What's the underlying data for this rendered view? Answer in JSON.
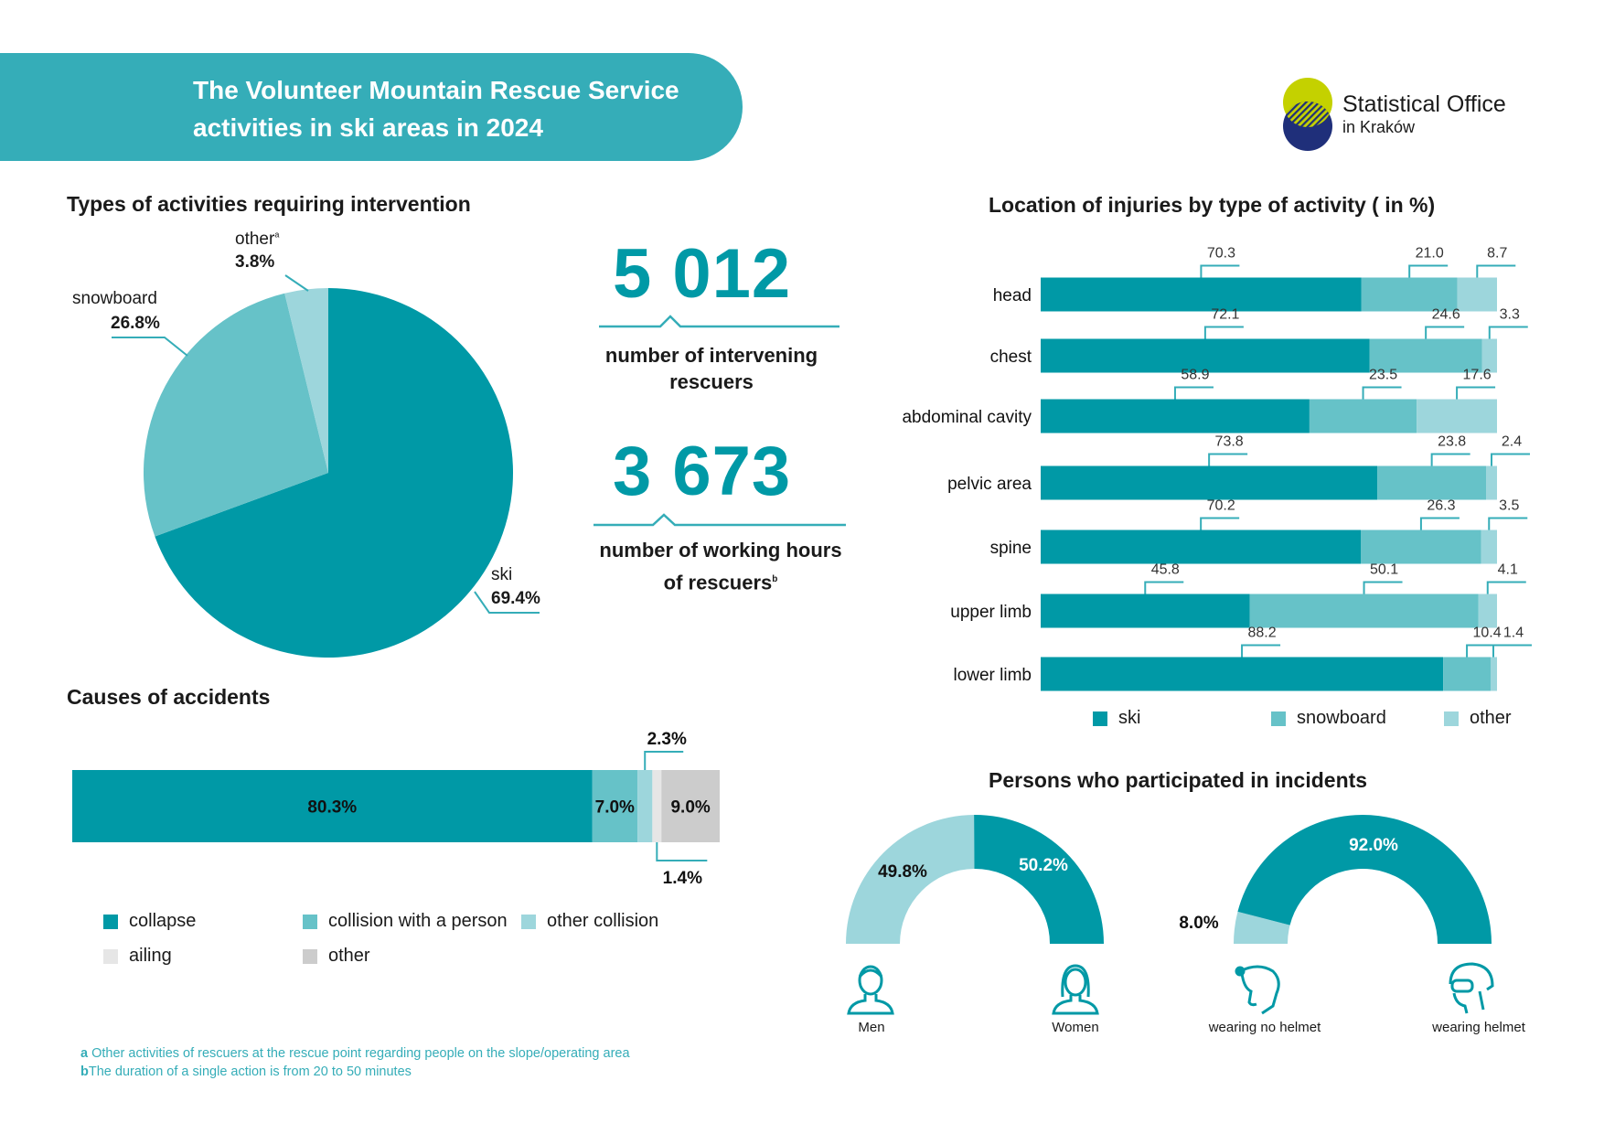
{
  "header": {
    "title_line1": "The Volunteer Mountain Rescue Service",
    "title_line2": "activities in ski areas in 2024"
  },
  "logo": {
    "line1": "Statistical Office",
    "line2": "in Kraków"
  },
  "colors": {
    "ski": "#0099a6",
    "snowboard": "#66c2c8",
    "other": "#9dd6dc",
    "ailing": "#e6e6e6",
    "other_grey": "#cccccc",
    "banner": "#35adb8"
  },
  "stats": [
    {
      "value": "5 012",
      "caption_line1": "number of intervening",
      "caption_line2": "rescuers",
      "footnote_mark": ""
    },
    {
      "value": "3 673",
      "caption_line1": "number of working hours",
      "caption_line2": "of rescuers",
      "footnote_mark": "b"
    }
  ],
  "chart_data": [
    {
      "type": "pie",
      "title": "Types of activities requiring intervention",
      "slices": [
        {
          "label": "ski",
          "value": 69.4,
          "value_label": "69.4%",
          "mark": ""
        },
        {
          "label": "snowboard",
          "value": 26.8,
          "value_label": "26.8%",
          "mark": ""
        },
        {
          "label": "other",
          "value": 3.8,
          "value_label": "3.8%",
          "mark": "a"
        }
      ]
    },
    {
      "type": "bar",
      "orientation": "horizontal-stacked",
      "title": "Causes of accidents",
      "series": [
        {
          "name": "collapse",
          "value": 80.3,
          "value_label": "80.3%"
        },
        {
          "name": "collision with a person",
          "value": 7.0,
          "value_label": "7.0%"
        },
        {
          "name": "other collision",
          "value": 2.3,
          "value_label": "2.3%"
        },
        {
          "name": "ailing",
          "value": 1.4,
          "value_label": "1.4%"
        },
        {
          "name": "other",
          "value": 9.0,
          "value_label": "9.0%"
        }
      ]
    },
    {
      "type": "bar",
      "orientation": "horizontal-stacked-100",
      "title": "Location of injuries by type of activity ( in %)",
      "categories": [
        "head",
        "chest",
        "abdominal cavity",
        "pelvic area",
        "spine",
        "upper limb",
        "lower limb"
      ],
      "series": [
        {
          "name": "ski",
          "values": [
            70.3,
            72.1,
            58.9,
            73.8,
            70.2,
            45.8,
            88.2
          ]
        },
        {
          "name": "snowboard",
          "values": [
            21.0,
            24.6,
            23.5,
            23.8,
            26.3,
            50.1,
            10.4
          ]
        },
        {
          "name": "other",
          "values": [
            8.7,
            3.3,
            17.6,
            2.4,
            3.5,
            4.1,
            1.4
          ]
        }
      ],
      "legend": "bottom"
    },
    {
      "type": "pie",
      "variant": "half-donut",
      "title": "Persons who participated in incidents",
      "slices": [
        {
          "label": "Men",
          "value": 49.8,
          "value_label": "49.8%"
        },
        {
          "label": "Women",
          "value": 50.2,
          "value_label": "50.2%"
        }
      ]
    },
    {
      "type": "pie",
      "variant": "half-donut",
      "slices": [
        {
          "label": "wearing no helmet",
          "value": 8.0,
          "value_label": "8.0%"
        },
        {
          "label": "wearing helmet",
          "value": 92.0,
          "value_label": "92.0%"
        }
      ]
    }
  ],
  "footnotes": [
    {
      "mark": "a",
      "text": "Other activities of rescuers at the rescue point regarding people on the slope/operating area"
    },
    {
      "mark": "b",
      "text": "The duration of a single action is from 20 to 50 minutes"
    }
  ]
}
